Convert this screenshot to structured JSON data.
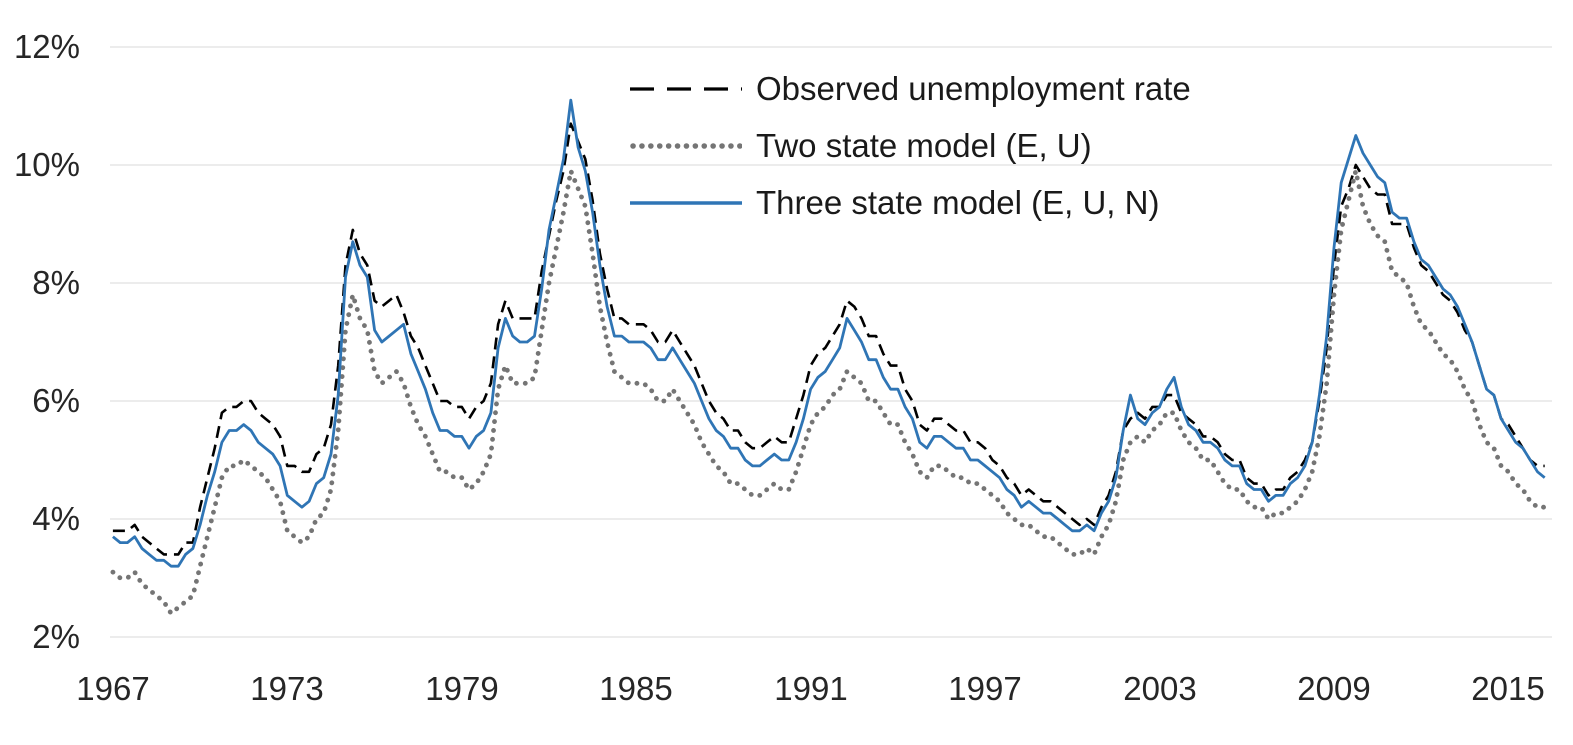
{
  "chart_data": {
    "type": "line",
    "grid": "horizontal",
    "legend_position": "inside-top-center",
    "ylim": [
      2,
      12
    ],
    "xlim": [
      1966.9,
      2016.5
    ],
    "yticks": [
      2,
      4,
      6,
      8,
      10,
      12
    ],
    "ytick_labels": [
      "2%",
      "4%",
      "6%",
      "8%",
      "10%",
      "12%"
    ],
    "xticks": [
      1967,
      1973,
      1979,
      1985,
      1991,
      1997,
      2003,
      2009,
      2015
    ],
    "x_start": 1967.0,
    "x_interval": 0.25,
    "gridline_color": "#d9d9d9",
    "series": [
      {
        "name": "Observed unemployment rate",
        "style": "dashed",
        "color": "#000000",
        "values": [
          3.8,
          3.8,
          3.8,
          3.9,
          3.7,
          3.6,
          3.5,
          3.4,
          3.4,
          3.4,
          3.6,
          3.6,
          4.2,
          4.7,
          5.2,
          5.8,
          5.9,
          5.9,
          6.0,
          6.0,
          5.8,
          5.7,
          5.6,
          5.4,
          4.9,
          4.9,
          4.8,
          4.8,
          5.1,
          5.2,
          5.6,
          6.6,
          8.3,
          8.9,
          8.5,
          8.3,
          7.7,
          7.6,
          7.7,
          7.8,
          7.5,
          7.1,
          6.9,
          6.6,
          6.3,
          6.0,
          6.0,
          5.9,
          5.9,
          5.7,
          5.9,
          6.0,
          6.3,
          7.3,
          7.7,
          7.4,
          7.4,
          7.4,
          7.4,
          8.2,
          8.8,
          9.4,
          9.9,
          10.7,
          10.4,
          10.1,
          9.4,
          8.5,
          7.9,
          7.4,
          7.4,
          7.3,
          7.3,
          7.3,
          7.2,
          7.0,
          7.0,
          7.2,
          7.0,
          6.8,
          6.6,
          6.3,
          6.0,
          5.8,
          5.7,
          5.5,
          5.5,
          5.3,
          5.2,
          5.2,
          5.3,
          5.4,
          5.3,
          5.3,
          5.7,
          6.1,
          6.6,
          6.8,
          6.9,
          7.1,
          7.3,
          7.7,
          7.6,
          7.4,
          7.1,
          7.1,
          6.8,
          6.6,
          6.6,
          6.2,
          6.0,
          5.6,
          5.5,
          5.7,
          5.7,
          5.6,
          5.5,
          5.5,
          5.3,
          5.3,
          5.2,
          5.0,
          4.9,
          4.7,
          4.6,
          4.4,
          4.5,
          4.4,
          4.3,
          4.3,
          4.2,
          4.1,
          4.0,
          3.9,
          4.0,
          3.9,
          4.2,
          4.4,
          4.8,
          5.5,
          5.7,
          5.8,
          5.7,
          5.9,
          5.9,
          6.1,
          6.1,
          5.8,
          5.7,
          5.6,
          5.4,
          5.4,
          5.3,
          5.1,
          5.0,
          5.0,
          4.7,
          4.6,
          4.6,
          4.4,
          4.5,
          4.5,
          4.7,
          4.8,
          5.0,
          5.3,
          6.0,
          6.9,
          8.3,
          9.3,
          9.6,
          10.0,
          9.8,
          9.6,
          9.5,
          9.5,
          9.0,
          9.0,
          9.0,
          8.6,
          8.3,
          8.2,
          8.0,
          7.8,
          7.7,
          7.5,
          7.2,
          7.0,
          6.6,
          6.2,
          6.1,
          5.7,
          5.6,
          5.4,
          5.2,
          5.0,
          4.9,
          4.9
        ]
      },
      {
        "name": "Two state model (E, U)",
        "style": "dotted",
        "color": "#757575",
        "values": [
          3.1,
          3.0,
          3.0,
          3.1,
          2.9,
          2.8,
          2.7,
          2.6,
          2.4,
          2.5,
          2.6,
          2.7,
          3.2,
          3.7,
          4.2,
          4.7,
          4.9,
          4.9,
          5.0,
          4.9,
          4.8,
          4.7,
          4.5,
          4.3,
          3.8,
          3.7,
          3.6,
          3.7,
          4.0,
          4.1,
          4.5,
          5.5,
          7.2,
          7.8,
          7.4,
          7.2,
          6.5,
          6.3,
          6.4,
          6.5,
          6.3,
          5.9,
          5.6,
          5.4,
          5.1,
          4.8,
          4.8,
          4.7,
          4.7,
          4.5,
          4.6,
          4.8,
          5.1,
          6.2,
          6.6,
          6.3,
          6.3,
          6.3,
          6.4,
          7.2,
          8.0,
          8.6,
          9.2,
          9.9,
          9.6,
          9.3,
          8.5,
          7.6,
          7.0,
          6.5,
          6.4,
          6.3,
          6.3,
          6.3,
          6.2,
          6.0,
          6.0,
          6.2,
          6.0,
          5.8,
          5.6,
          5.3,
          5.1,
          4.9,
          4.8,
          4.6,
          4.6,
          4.5,
          4.4,
          4.4,
          4.5,
          4.6,
          4.5,
          4.5,
          4.8,
          5.2,
          5.6,
          5.8,
          5.9,
          6.1,
          6.2,
          6.5,
          6.4,
          6.3,
          6.0,
          6.0,
          5.8,
          5.6,
          5.6,
          5.3,
          5.1,
          4.8,
          4.7,
          4.9,
          4.9,
          4.8,
          4.7,
          4.7,
          4.6,
          4.6,
          4.5,
          4.4,
          4.3,
          4.1,
          4.0,
          3.9,
          3.9,
          3.8,
          3.7,
          3.7,
          3.6,
          3.5,
          3.4,
          3.4,
          3.5,
          3.4,
          3.7,
          3.9,
          4.3,
          5.0,
          5.3,
          5.4,
          5.3,
          5.5,
          5.6,
          5.8,
          5.8,
          5.5,
          5.3,
          5.2,
          5.0,
          5.0,
          4.8,
          4.6,
          4.5,
          4.5,
          4.3,
          4.2,
          4.2,
          4.0,
          4.1,
          4.1,
          4.2,
          4.3,
          4.5,
          4.8,
          5.4,
          6.3,
          7.8,
          8.9,
          9.4,
          9.9,
          9.3,
          9.0,
          8.8,
          8.7,
          8.2,
          8.1,
          8.0,
          7.6,
          7.3,
          7.2,
          7.0,
          6.8,
          6.7,
          6.5,
          6.2,
          6.0,
          5.6,
          5.3,
          5.2,
          4.9,
          4.8,
          4.6,
          4.5,
          4.3,
          4.2,
          4.2
        ]
      },
      {
        "name": "Three state model (E, U, N)",
        "style": "solid",
        "color": "#2f75b5",
        "values": [
          3.7,
          3.6,
          3.6,
          3.7,
          3.5,
          3.4,
          3.3,
          3.3,
          3.2,
          3.2,
          3.4,
          3.5,
          3.9,
          4.4,
          4.8,
          5.3,
          5.5,
          5.5,
          5.6,
          5.5,
          5.3,
          5.2,
          5.1,
          4.9,
          4.4,
          4.3,
          4.2,
          4.3,
          4.6,
          4.7,
          5.1,
          6.1,
          8.1,
          8.7,
          8.3,
          8.1,
          7.2,
          7.0,
          7.1,
          7.2,
          7.3,
          6.8,
          6.5,
          6.2,
          5.8,
          5.5,
          5.5,
          5.4,
          5.4,
          5.2,
          5.4,
          5.5,
          5.8,
          6.9,
          7.4,
          7.1,
          7.0,
          7.0,
          7.1,
          7.9,
          8.9,
          9.5,
          10.1,
          11.1,
          10.3,
          9.9,
          9.2,
          8.3,
          7.6,
          7.1,
          7.1,
          7.0,
          7.0,
          7.0,
          6.9,
          6.7,
          6.7,
          6.9,
          6.7,
          6.5,
          6.3,
          6.0,
          5.7,
          5.5,
          5.4,
          5.2,
          5.2,
          5.0,
          4.9,
          4.9,
          5.0,
          5.1,
          5.0,
          5.0,
          5.3,
          5.7,
          6.2,
          6.4,
          6.5,
          6.7,
          6.9,
          7.4,
          7.2,
          7.0,
          6.7,
          6.7,
          6.4,
          6.2,
          6.2,
          5.9,
          5.7,
          5.3,
          5.2,
          5.4,
          5.4,
          5.3,
          5.2,
          5.2,
          5.0,
          5.0,
          4.9,
          4.8,
          4.7,
          4.5,
          4.4,
          4.2,
          4.3,
          4.2,
          4.1,
          4.1,
          4.0,
          3.9,
          3.8,
          3.8,
          3.9,
          3.8,
          4.1,
          4.3,
          4.7,
          5.5,
          6.1,
          5.7,
          5.6,
          5.8,
          5.9,
          6.2,
          6.4,
          5.9,
          5.6,
          5.5,
          5.3,
          5.3,
          5.2,
          5.0,
          4.9,
          4.9,
          4.6,
          4.5,
          4.5,
          4.3,
          4.4,
          4.4,
          4.6,
          4.7,
          4.9,
          5.3,
          6.1,
          7.1,
          8.6,
          9.7,
          10.1,
          10.5,
          10.2,
          10.0,
          9.8,
          9.7,
          9.2,
          9.1,
          9.1,
          8.7,
          8.4,
          8.3,
          8.1,
          7.9,
          7.8,
          7.6,
          7.3,
          7.0,
          6.6,
          6.2,
          6.1,
          5.7,
          5.5,
          5.3,
          5.2,
          5.0,
          4.8,
          4.7
        ]
      }
    ]
  },
  "legend": {
    "items": [
      {
        "label": "Observed unemployment rate"
      },
      {
        "label": "Two state model (E, U)"
      },
      {
        "label": "Three state model (E, U, N)"
      }
    ]
  }
}
